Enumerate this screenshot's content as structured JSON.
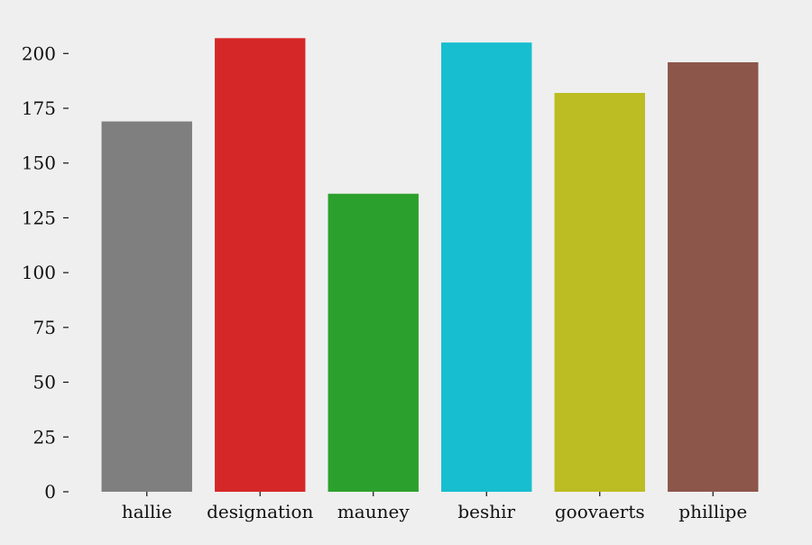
{
  "chart_data": {
    "type": "bar",
    "title": "",
    "xlabel": "",
    "ylabel": "",
    "categories": [
      "hallie",
      "designation",
      "mauney",
      "beshir",
      "goovaerts",
      "phillipe"
    ],
    "values": [
      169,
      207,
      136,
      205,
      182,
      196
    ],
    "colors": [
      "#7f7f7f",
      "#d62728",
      "#2ca02c",
      "#17becf",
      "#bcbd22",
      "#8c564b"
    ],
    "ylim": [
      0,
      217
    ],
    "yticks": [
      0,
      25,
      50,
      75,
      100,
      125,
      150,
      175,
      200
    ],
    "grid": false,
    "legend": "none",
    "background": "#efefef"
  }
}
